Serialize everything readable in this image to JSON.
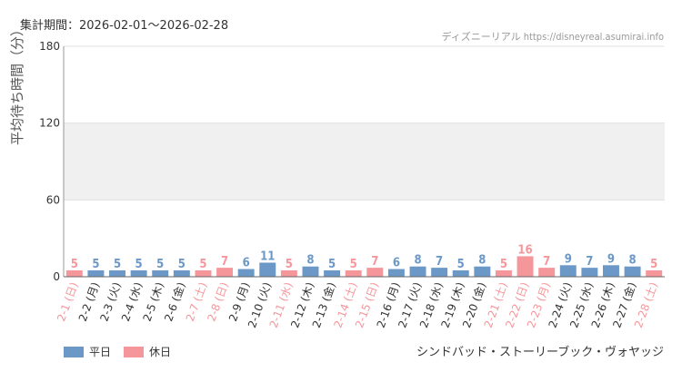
{
  "header": {
    "period": "集計期間：2026-02-01〜2026-02-28",
    "credit": "ディズニーリアル https://disneyreal.asumirai.info"
  },
  "footer": {
    "attraction": "シンドバッド・ストーリーブック・ヴォヤッジ"
  },
  "colors": {
    "weekday": "#6b98c7",
    "holiday": "#f5969b",
    "band": "#f0f0f0",
    "grid": "#e0e0e0",
    "axis": "#999999"
  },
  "chart_data": {
    "type": "bar",
    "ylabel": "平均待ち時間（分）",
    "ylim": [
      0,
      180
    ],
    "yticks": [
      0,
      60,
      120,
      180
    ],
    "grid": true,
    "legend_position": "bottom-left",
    "series": [
      {
        "name": "平日",
        "key": "weekday"
      },
      {
        "name": "休日",
        "key": "holiday"
      }
    ],
    "categories": [
      "2-1 (日)",
      "2-2 (月)",
      "2-3 (火)",
      "2-4 (水)",
      "2-5 (木)",
      "2-6 (金)",
      "2-7 (土)",
      "2-8 (日)",
      "2-9 (月)",
      "2-10 (火)",
      "2-11 (水)",
      "2-12 (木)",
      "2-13 (金)",
      "2-14 (土)",
      "2-15 (日)",
      "2-16 (月)",
      "2-17 (火)",
      "2-18 (水)",
      "2-19 (木)",
      "2-20 (金)",
      "2-21 (土)",
      "2-22 (日)",
      "2-23 (月)",
      "2-24 (火)",
      "2-25 (水)",
      "2-26 (木)",
      "2-27 (金)",
      "2-28 (土)"
    ],
    "values": [
      5,
      5,
      5,
      5,
      5,
      5,
      5,
      7,
      6,
      11,
      5,
      8,
      5,
      5,
      7,
      6,
      8,
      7,
      5,
      8,
      5,
      16,
      7,
      9,
      7,
      9,
      8,
      5
    ],
    "day_type": [
      "holiday",
      "weekday",
      "weekday",
      "weekday",
      "weekday",
      "weekday",
      "holiday",
      "holiday",
      "weekday",
      "weekday",
      "holiday",
      "weekday",
      "weekday",
      "holiday",
      "holiday",
      "weekday",
      "weekday",
      "weekday",
      "weekday",
      "weekday",
      "holiday",
      "holiday",
      "holiday",
      "weekday",
      "weekday",
      "weekday",
      "weekday",
      "holiday"
    ]
  }
}
